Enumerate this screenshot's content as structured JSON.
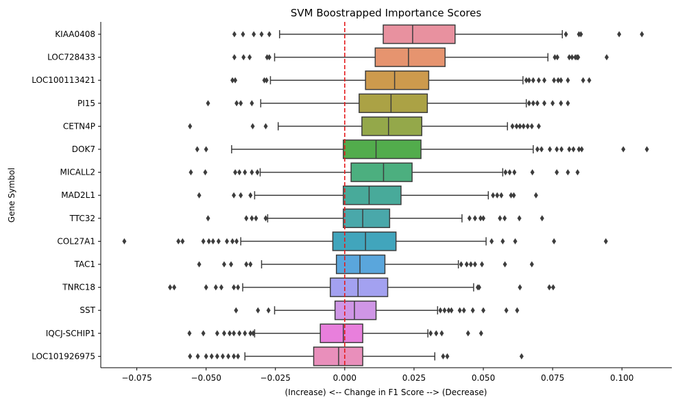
{
  "chart_data": {
    "type": "boxplot",
    "orientation": "horizontal",
    "title": "SVM Boostrapped Importance Scores",
    "xlabel": "(Increase) <-- Change in F1 Score --> (Decrease)",
    "ylabel": "Gene Symbol",
    "xlim": [
      -0.088,
      0.118
    ],
    "xticks": [
      -0.075,
      -0.05,
      -0.025,
      0.0,
      0.025,
      0.05,
      0.075,
      0.1
    ],
    "xtick_labels": [
      "−0.075",
      "−0.050",
      "−0.025",
      "0.000",
      "0.025",
      "0.050",
      "0.075",
      "0.100"
    ],
    "reference_line": {
      "x": 0.0,
      "color": "#e41a1c",
      "style": "dashed"
    },
    "series": [
      {
        "name": "KIAA0408",
        "color": "#e8919f",
        "whisker_low": -0.0235,
        "q1": 0.0139,
        "median": 0.0245,
        "q3": 0.0398,
        "whisker_high": 0.0785,
        "outliers": [
          -0.0398,
          -0.0367,
          -0.0328,
          -0.03,
          -0.0272,
          0.0798,
          0.0845,
          0.0852,
          0.099,
          0.1072
        ]
      },
      {
        "name": "LOC728433",
        "color": "#e6946f",
        "whisker_low": -0.0253,
        "q1": 0.011,
        "median": 0.023,
        "q3": 0.0362,
        "whisker_high": 0.0733,
        "outliers": [
          -0.0398,
          -0.0365,
          -0.0343,
          -0.028,
          -0.0272,
          0.0758,
          0.0767,
          0.081,
          0.082,
          0.0832,
          0.0838,
          0.0842,
          0.0945
        ]
      },
      {
        "name": "LOC100113421",
        "color": "#cd9a4d",
        "whisker_low": -0.0268,
        "q1": 0.0075,
        "median": 0.018,
        "q3": 0.0303,
        "whisker_high": 0.0643,
        "outliers": [
          -0.0405,
          -0.0395,
          -0.029,
          -0.0282,
          0.0655,
          0.0665,
          0.068,
          0.07,
          0.072,
          0.0755,
          0.077,
          0.078,
          0.0805,
          0.086,
          0.0882
        ]
      },
      {
        "name": "PI15",
        "color": "#aba245",
        "whisker_low": -0.0303,
        "q1": 0.0052,
        "median": 0.0167,
        "q3": 0.0298,
        "whisker_high": 0.0655,
        "outliers": [
          -0.0493,
          -0.039,
          -0.0375,
          -0.0335,
          0.0665,
          0.068,
          0.0695,
          0.072,
          0.075,
          0.078,
          0.0805
        ]
      },
      {
        "name": "CETN4P",
        "color": "#94a84a",
        "whisker_low": -0.024,
        "q1": 0.0062,
        "median": 0.0158,
        "q3": 0.0278,
        "whisker_high": 0.0587,
        "outliers": [
          -0.0558,
          -0.0332,
          -0.0285,
          0.0605,
          0.062,
          0.0632,
          0.0645,
          0.066,
          0.0675,
          0.07
        ]
      },
      {
        "name": "DOK7",
        "color": "#52ac4c",
        "whisker_low": -0.0408,
        "q1": -0.0005,
        "median": 0.0113,
        "q3": 0.0275,
        "whisker_high": 0.068,
        "outliers": [
          -0.0532,
          -0.05,
          0.0695,
          0.071,
          0.074,
          0.0765,
          0.0782,
          0.081,
          0.0825,
          0.0845,
          0.0855,
          0.1005,
          0.109
        ]
      },
      {
        "name": "MICALL2",
        "color": "#4caf7f",
        "whisker_low": -0.0305,
        "q1": 0.0023,
        "median": 0.014,
        "q3": 0.0243,
        "whisker_high": 0.057,
        "outliers": [
          -0.0555,
          -0.0503,
          -0.0395,
          -0.038,
          -0.036,
          -0.0335,
          -0.0315,
          0.058,
          0.0595,
          0.0612,
          0.0677,
          0.0765,
          0.0805,
          0.084
        ]
      },
      {
        "name": "MAD2L1",
        "color": "#48aa9a",
        "whisker_low": -0.0325,
        "q1": -0.0005,
        "median": 0.0088,
        "q3": 0.0203,
        "whisker_high": 0.0518,
        "outliers": [
          -0.0525,
          -0.04,
          -0.0375,
          -0.034,
          0.0535,
          0.055,
          0.0565,
          0.06,
          0.061,
          0.069
        ]
      },
      {
        "name": "TTC32",
        "color": "#4aa8aa",
        "whisker_low": -0.0278,
        "q1": -0.0005,
        "median": 0.0065,
        "q3": 0.0162,
        "whisker_high": 0.0423,
        "outliers": [
          -0.0493,
          -0.0355,
          -0.0335,
          -0.032,
          -0.0285,
          0.045,
          0.047,
          0.049,
          0.05,
          0.056,
          0.0577,
          0.063,
          0.0712
        ]
      },
      {
        "name": "COL27A1",
        "color": "#41a5bc",
        "whisker_low": -0.0375,
        "q1": -0.0043,
        "median": 0.0075,
        "q3": 0.0185,
        "whisker_high": 0.051,
        "outliers": [
          -0.0795,
          -0.06,
          -0.0585,
          -0.051,
          -0.049,
          -0.0475,
          -0.0455,
          -0.0425,
          -0.0405,
          -0.039,
          0.053,
          0.057,
          0.0615,
          0.0755,
          0.0942
        ]
      },
      {
        "name": "TAC1",
        "color": "#5aa6dc",
        "whisker_low": -0.03,
        "q1": -0.003,
        "median": 0.0055,
        "q3": 0.0145,
        "whisker_high": 0.041,
        "outliers": [
          -0.0525,
          -0.0435,
          -0.041,
          -0.0355,
          -0.034,
          0.042,
          0.044,
          0.0455,
          0.047,
          0.0495,
          0.0578,
          0.0675
        ]
      },
      {
        "name": "TNRC18",
        "color": "#a3a1f0",
        "whisker_low": -0.0368,
        "q1": -0.0052,
        "median": 0.0048,
        "q3": 0.0155,
        "whisker_high": 0.0465,
        "outliers": [
          -0.063,
          -0.0615,
          -0.05,
          -0.0465,
          -0.0445,
          -0.04,
          -0.0385,
          0.048,
          0.0485,
          0.0632,
          0.0738,
          0.0752
        ]
      },
      {
        "name": "SST",
        "color": "#cf96e6",
        "whisker_low": -0.0253,
        "q1": -0.0035,
        "median": 0.0035,
        "q3": 0.0113,
        "whisker_high": 0.0335,
        "outliers": [
          -0.0392,
          -0.0313,
          -0.0275,
          0.0345,
          0.036,
          0.0375,
          0.0385,
          0.0415,
          0.043,
          0.0462,
          0.05,
          0.0583,
          0.0622
        ]
      },
      {
        "name": "IQCJ-SCHIP1",
        "color": "#e87fdc",
        "whisker_low": -0.0325,
        "q1": -0.0088,
        "median": -0.0005,
        "q3": 0.0065,
        "whisker_high": 0.03,
        "outliers": [
          -0.056,
          -0.051,
          -0.046,
          -0.0435,
          -0.0415,
          -0.04,
          -0.038,
          -0.036,
          -0.034,
          -0.033,
          0.031,
          0.033,
          0.035,
          0.0445,
          0.0492
        ]
      },
      {
        "name": "LOC101926975",
        "color": "#e98fbb",
        "whisker_low": -0.036,
        "q1": -0.0112,
        "median": -0.0022,
        "q3": 0.0065,
        "whisker_high": 0.0325,
        "outliers": [
          -0.0558,
          -0.053,
          -0.05,
          -0.048,
          -0.046,
          -0.044,
          -0.042,
          -0.04,
          -0.0385,
          0.0355,
          0.037,
          0.0638
        ]
      }
    ]
  }
}
